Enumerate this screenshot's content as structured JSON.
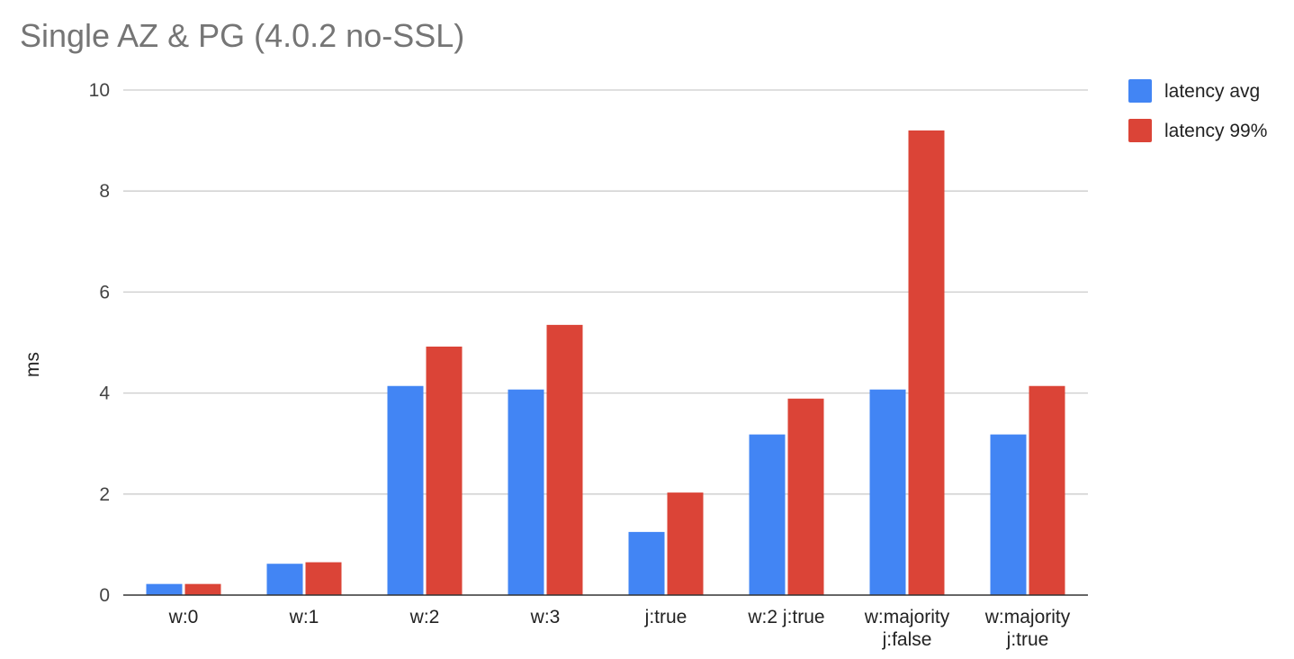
{
  "chart_data": {
    "type": "bar",
    "title": "Single AZ & PG (4.0.2 no-SSL)",
    "xlabel": "",
    "ylabel": "ms",
    "ylim": [
      0,
      10
    ],
    "yticks": [
      "0",
      "2",
      "4",
      "6",
      "8",
      "10"
    ],
    "grid": true,
    "legend_position": "right",
    "categories": [
      [
        "w:0"
      ],
      [
        "w:1"
      ],
      [
        "w:2"
      ],
      [
        "w:3"
      ],
      [
        "j:true"
      ],
      [
        "w:2 j:true"
      ],
      [
        "w:majority",
        "j:false"
      ],
      [
        "w:majority",
        "j:true"
      ]
    ],
    "series": [
      {
        "name": "latency avg",
        "color": "#4285f4",
        "values": [
          0.22,
          0.62,
          4.14,
          4.07,
          1.25,
          3.18,
          4.07,
          3.18
        ]
      },
      {
        "name": "latency 99%",
        "color": "#db4437",
        "values": [
          0.22,
          0.65,
          4.92,
          5.35,
          2.03,
          3.89,
          9.2,
          4.14
        ]
      }
    ]
  }
}
